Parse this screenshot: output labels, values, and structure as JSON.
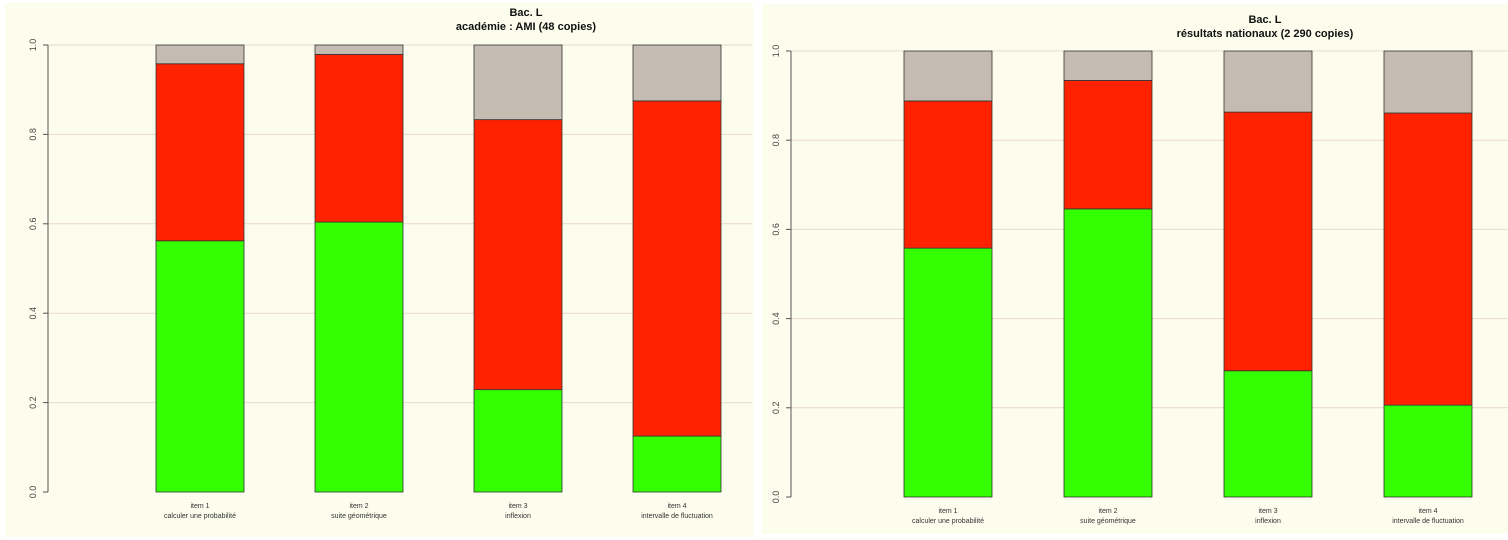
{
  "colors": {
    "background": "#fdfdee",
    "gridline": "#e8d8cc",
    "axis": "#555555",
    "bar_outline": "#333333",
    "series": [
      "#33ff00",
      "#ff2200",
      "#c4bcb0"
    ]
  },
  "chart_data": [
    {
      "type": "bar",
      "stacked": true,
      "title": "Bac. L",
      "subtitle": "académie : AMI (48 copies)",
      "categories": [
        "item 1",
        "item 2",
        "item 3",
        "item 4"
      ],
      "category_sublabels": [
        "calculer une probabilité",
        "suite géométrique",
        "inflexion",
        "intervalle de fluctuation"
      ],
      "yticks": [
        "0.0",
        "0.2",
        "0.4",
        "0.6",
        "0.8",
        "1.0"
      ],
      "ylim": [
        0,
        1
      ],
      "grid": true,
      "series": [
        {
          "values": [
            0.562,
            0.604,
            0.229,
            0.125
          ]
        },
        {
          "values": [
            0.396,
            0.375,
            0.604,
            0.75
          ]
        },
        {
          "values": [
            0.042,
            0.021,
            0.167,
            0.125
          ]
        }
      ]
    },
    {
      "type": "bar",
      "stacked": true,
      "title": "Bac. L",
      "subtitle": "résultats nationaux (2 290 copies)",
      "categories": [
        "item 1",
        "item 2",
        "item 3",
        "item 4"
      ],
      "category_sublabels": [
        "calculer une probabilité",
        "suite géométrique",
        "inflexion",
        "intervalle de fluctuation"
      ],
      "yticks": [
        "0.0",
        "0.2",
        "0.4",
        "0.6",
        "0.8",
        "1.0"
      ],
      "ylim": [
        0,
        1
      ],
      "grid": true,
      "series": [
        {
          "values": [
            0.558,
            0.646,
            0.283,
            0.206
          ]
        },
        {
          "values": [
            0.33,
            0.288,
            0.58,
            0.655
          ]
        },
        {
          "values": [
            0.112,
            0.066,
            0.137,
            0.139
          ]
        }
      ]
    }
  ]
}
